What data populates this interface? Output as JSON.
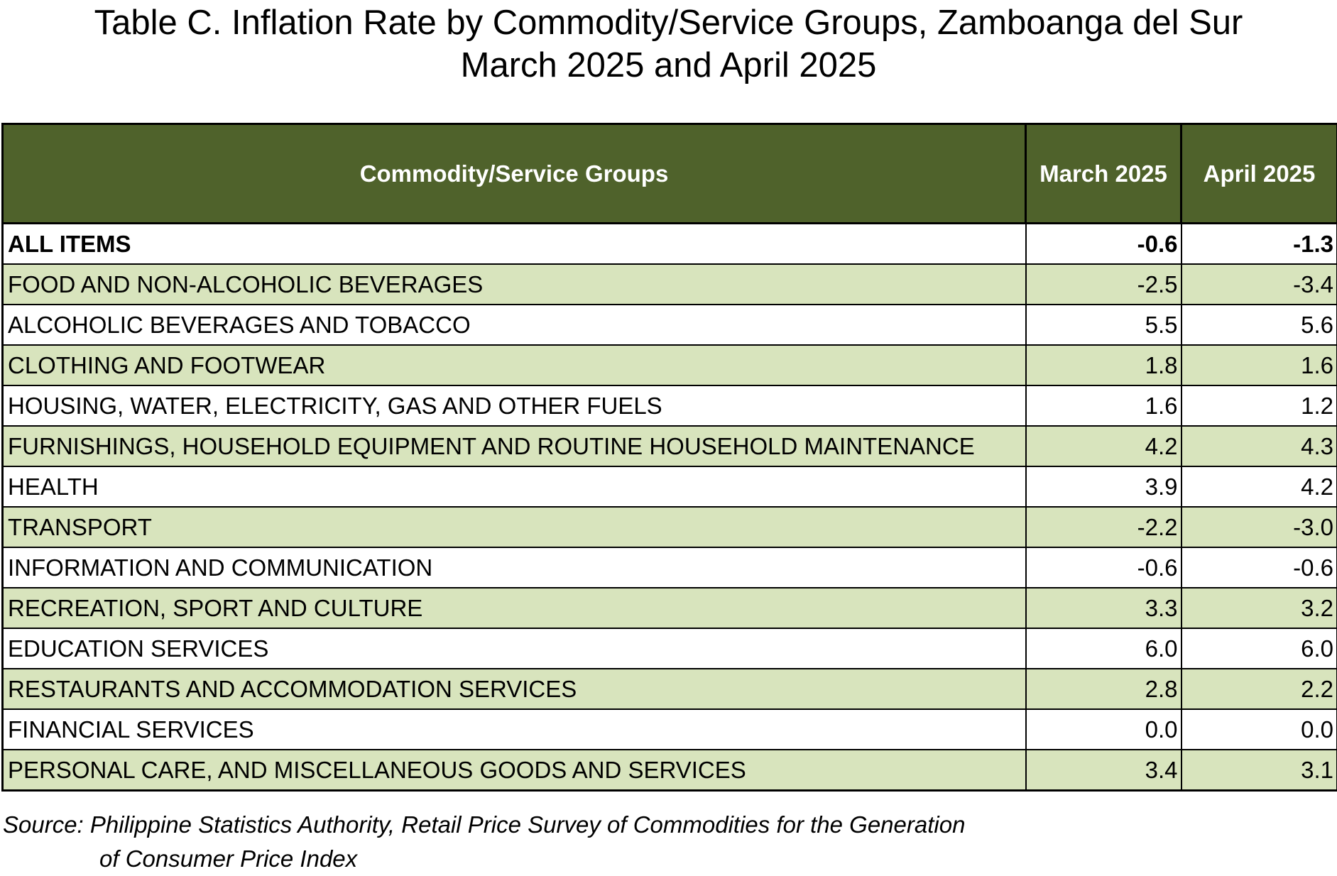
{
  "title": {
    "line1": "Table C. Inflation Rate by Commodity/Service Groups, Zamboanga del Sur",
    "line2": "March 2025 and April 2025"
  },
  "table": {
    "headers": [
      "Commodity/Service Groups",
      "March 2025",
      "April 2025"
    ],
    "rows": [
      {
        "group": "ALL ITEMS",
        "march": "-0.6",
        "april": "-1.3"
      },
      {
        "group": "FOOD AND NON-ALCOHOLIC BEVERAGES",
        "march": "-2.5",
        "april": "-3.4"
      },
      {
        "group": "ALCOHOLIC BEVERAGES AND TOBACCO",
        "march": "5.5",
        "april": "5.6"
      },
      {
        "group": "CLOTHING AND FOOTWEAR",
        "march": "1.8",
        "april": "1.6"
      },
      {
        "group": "HOUSING, WATER, ELECTRICITY, GAS AND OTHER FUELS",
        "march": "1.6",
        "april": "1.2"
      },
      {
        "group": "FURNISHINGS, HOUSEHOLD EQUIPMENT AND ROUTINE HOUSEHOLD MAINTENANCE",
        "march": "4.2",
        "april": "4.3"
      },
      {
        "group": "HEALTH",
        "march": "3.9",
        "april": "4.2"
      },
      {
        "group": "TRANSPORT",
        "march": "-2.2",
        "april": "-3.0"
      },
      {
        "group": "INFORMATION AND COMMUNICATION",
        "march": "-0.6",
        "april": "-0.6"
      },
      {
        "group": "RECREATION, SPORT AND CULTURE",
        "march": "3.3",
        "april": "3.2"
      },
      {
        "group": "EDUCATION SERVICES",
        "march": "6.0",
        "april": "6.0"
      },
      {
        "group": "RESTAURANTS AND ACCOMMODATION SERVICES",
        "march": "2.8",
        "april": "2.2"
      },
      {
        "group": "FINANCIAL SERVICES",
        "march": "0.0",
        "april": "0.0"
      },
      {
        "group": "PERSONAL CARE, AND MISCELLANEOUS GOODS AND SERVICES",
        "march": "3.4",
        "april": "3.1"
      }
    ]
  },
  "source": {
    "line1": "Source: Philippine Statistics Authority, Retail Price Survey of Commodities for the Generation",
    "line2": "of Consumer Price Index"
  },
  "colors": {
    "header_bg": "#4f622b",
    "alt_row_bg": "#d8e4bd"
  }
}
